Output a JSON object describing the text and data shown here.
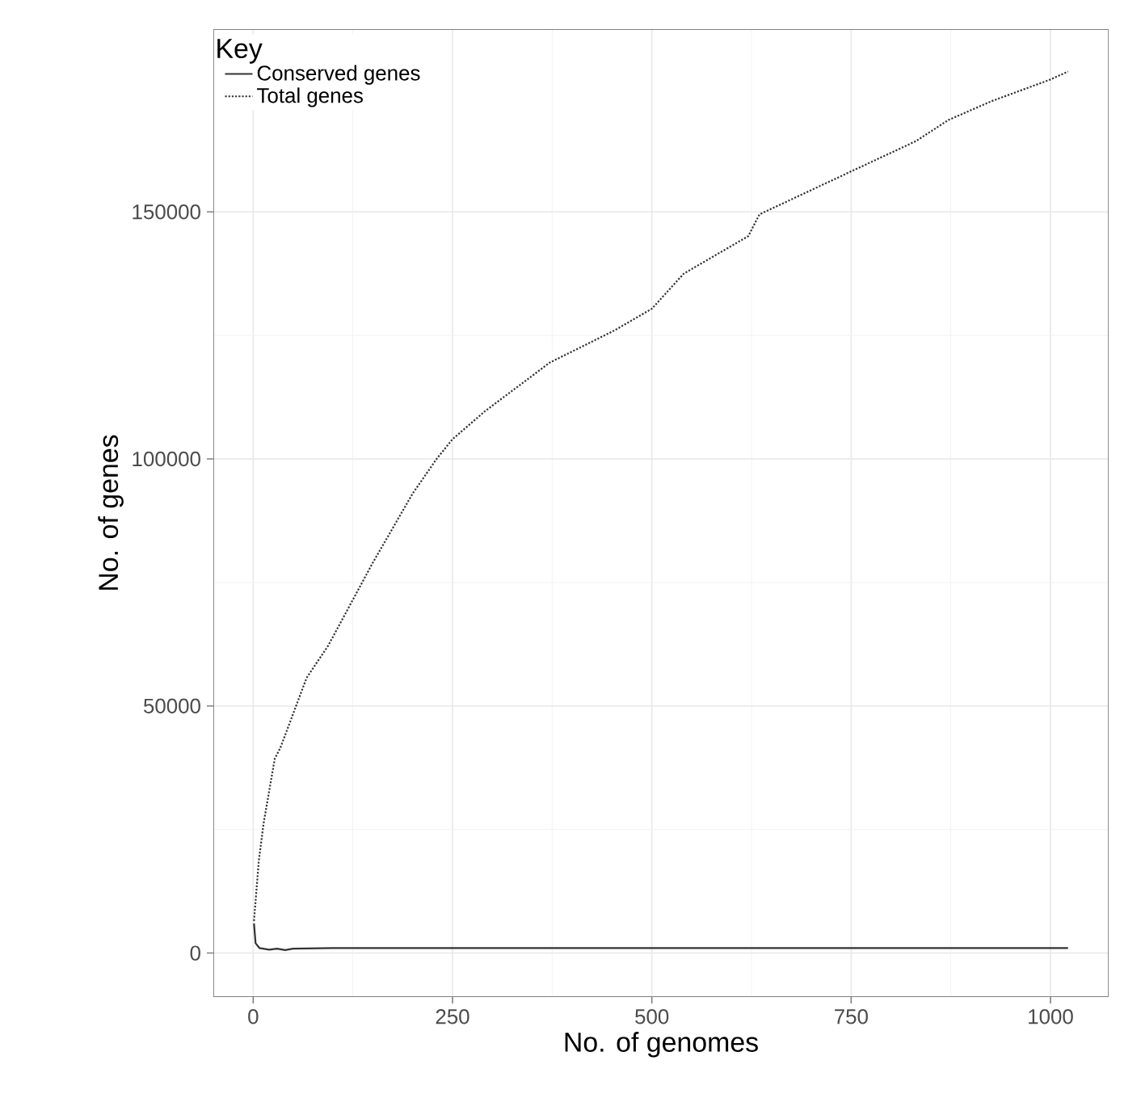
{
  "chart_data": {
    "type": "line",
    "xlabel": "No. of genomes",
    "ylabel": "No. of genes",
    "legend_title": "Key",
    "xlim": [
      -50,
      1073
    ],
    "ylim": [
      -8900,
      187000
    ],
    "xticks": [
      0,
      250,
      500,
      750,
      1000
    ],
    "yticks": [
      0,
      50000,
      100000,
      150000
    ],
    "grid": true,
    "legend": "top left",
    "series": [
      {
        "name": "Conserved genes",
        "color": "#333333",
        "line_style": "solid",
        "x": [
          1,
          3,
          8,
          20,
          30,
          40,
          50,
          100,
          300,
          600,
          1022
        ],
        "values": [
          6000,
          2000,
          1000,
          700,
          900,
          600,
          900,
          1000,
          1000,
          1000,
          1000
        ]
      },
      {
        "name": "Total genes",
        "color": "#333333",
        "line_style": "dotted",
        "x": [
          1,
          7,
          13,
          27,
          34,
          67,
          94,
          100,
          150,
          200,
          230,
          250,
          291,
          372,
          453,
          500,
          540,
          621,
          635,
          750,
          831,
          872,
          926,
          1000,
          1022
        ],
        "values": [
          6500,
          18600,
          26200,
          39300,
          41500,
          55700,
          62200,
          64000,
          79000,
          93000,
          100000,
          104000,
          109700,
          119500,
          126000,
          130400,
          137500,
          145100,
          149500,
          158200,
          164300,
          168600,
          172400,
          176800,
          178400
        ]
      }
    ]
  }
}
